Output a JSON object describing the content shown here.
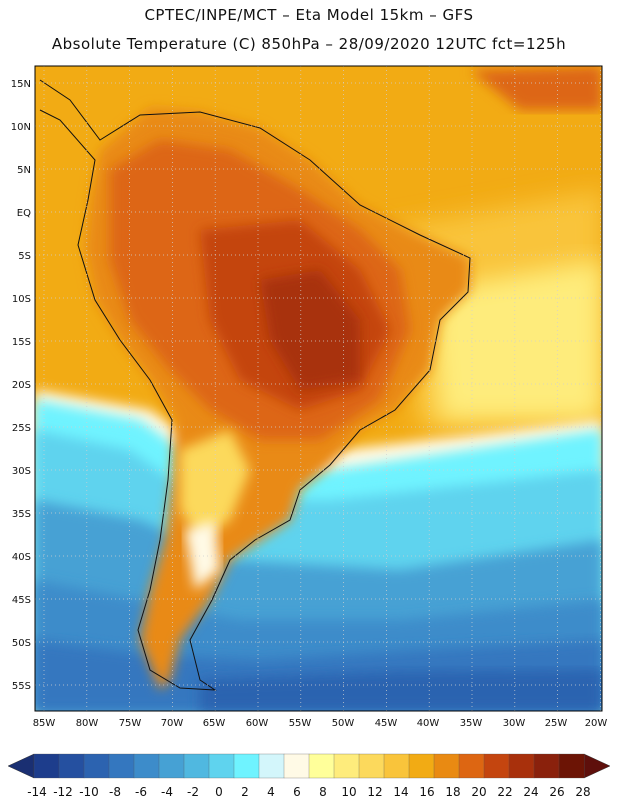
{
  "header": {
    "line1": "CPTEC/INPE/MCT –   Eta Model 15km – GFS",
    "line2": "Absolute Temperature (C) 850hPa – 28/09/2020 12UTC fct=125h"
  },
  "map": {
    "lon_range": [
      -85,
      -20
    ],
    "lat_range": [
      -58,
      17
    ],
    "lat_ticks": [
      "15N",
      "10N",
      "5N",
      "EQ",
      "5S",
      "10S",
      "15S",
      "20S",
      "25S",
      "30S",
      "35S",
      "40S",
      "45S",
      "50S",
      "55S"
    ],
    "lon_ticks": [
      "85W",
      "80W",
      "75W",
      "70W",
      "65W",
      "60W",
      "55W",
      "50W",
      "45W",
      "40W",
      "35W",
      "30W",
      "25W",
      "20W"
    ]
  },
  "colorbar": {
    "labels": [
      "-14",
      "-12",
      "-10",
      "-8",
      "-6",
      "-4",
      "-2",
      "0",
      "2",
      "4",
      "6",
      "8",
      "10",
      "12",
      "14",
      "16",
      "18",
      "20",
      "22",
      "24",
      "26",
      "28"
    ],
    "colors": [
      "#1d3d8c",
      "#2550a0",
      "#2c63b0",
      "#3477bf",
      "#3d8cca",
      "#46a1d4",
      "#50b8e0",
      "#5fd3ee",
      "#6ff3ff",
      "#d3f6fb",
      "#fffae6",
      "#ffff9a",
      "#feec7c",
      "#fcd95c",
      "#f9c43b",
      "#f2ab14",
      "#e98a12",
      "#dd6612",
      "#c4450f",
      "#a8300c",
      "#8a210c",
      "#6c1405"
    ]
  }
}
